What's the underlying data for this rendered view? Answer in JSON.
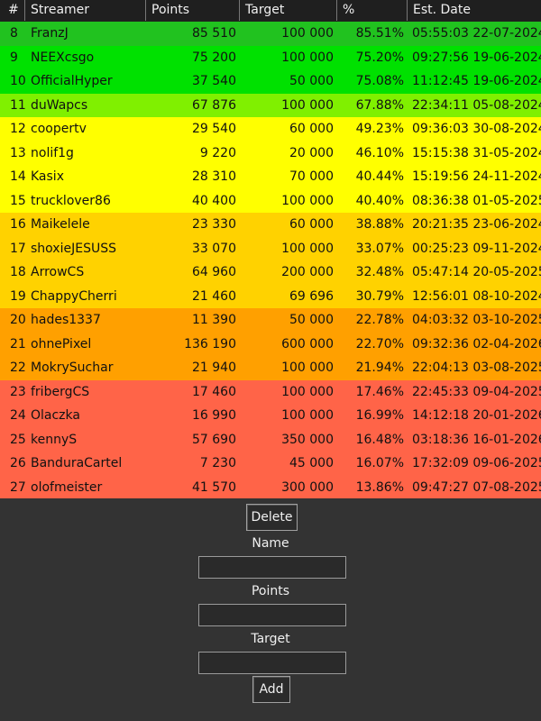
{
  "table": {
    "headers": [
      "#",
      "Streamer",
      "Points",
      "Target",
      "%",
      "Est. Date"
    ],
    "rows": [
      {
        "n": "8",
        "name": "FranzJ",
        "points": "85 510",
        "target": "100 000",
        "pct": "85.51%",
        "date": "05:55:03 22-07-2024",
        "color": "#21c21f"
      },
      {
        "n": "9",
        "name": "NEEXcsgo",
        "points": "75 200",
        "target": "100 000",
        "pct": "75.20%",
        "date": "09:27:56 19-06-2024",
        "color": "#00e100"
      },
      {
        "n": "10",
        "name": "OfficialHyper",
        "points": "37 540",
        "target": "50 000",
        "pct": "75.08%",
        "date": "11:12:45 19-06-2024",
        "color": "#00e100"
      },
      {
        "n": "11",
        "name": "duWapcs",
        "points": "67 876",
        "target": "100 000",
        "pct": "67.88%",
        "date": "22:34:11 05-08-2024",
        "color": "#80f000"
      },
      {
        "n": "12",
        "name": "coopertv",
        "points": "29 540",
        "target": "60 000",
        "pct": "49.23%",
        "date": "09:36:03 30-08-2024",
        "color": "#ffff00"
      },
      {
        "n": "13",
        "name": "nolif1g",
        "points": "9 220",
        "target": "20 000",
        "pct": "46.10%",
        "date": "15:15:38 31-05-2024",
        "color": "#ffff00"
      },
      {
        "n": "14",
        "name": "Kasix",
        "points": "28 310",
        "target": "70 000",
        "pct": "40.44%",
        "date": "15:19:56 24-11-2024",
        "color": "#ffff00"
      },
      {
        "n": "15",
        "name": "trucklover86",
        "points": "40 400",
        "target": "100 000",
        "pct": "40.40%",
        "date": "08:36:38 01-05-2025",
        "color": "#ffff00"
      },
      {
        "n": "16",
        "name": "Maikelele",
        "points": "23 330",
        "target": "60 000",
        "pct": "38.88%",
        "date": "20:21:35 23-06-2024",
        "color": "#ffd200"
      },
      {
        "n": "17",
        "name": "shoxieJESUSS",
        "points": "33 070",
        "target": "100 000",
        "pct": "33.07%",
        "date": "00:25:23 09-11-2024",
        "color": "#ffd200"
      },
      {
        "n": "18",
        "name": "ArrowCS",
        "points": "64 960",
        "target": "200 000",
        "pct": "32.48%",
        "date": "05:47:14 20-05-2025",
        "color": "#ffd200"
      },
      {
        "n": "19",
        "name": "ChappyCherri",
        "points": "21 460",
        "target": "69 696",
        "pct": "30.79%",
        "date": "12:56:01 08-10-2024",
        "color": "#ffd200"
      },
      {
        "n": "20",
        "name": "hades1337",
        "points": "11 390",
        "target": "50 000",
        "pct": "22.78%",
        "date": "04:03:32 03-10-2025",
        "color": "#ffa000"
      },
      {
        "n": "21",
        "name": "ohnePixel",
        "points": "136 190",
        "target": "600 000",
        "pct": "22.70%",
        "date": "09:32:36 02-04-2026",
        "color": "#ffa000"
      },
      {
        "n": "22",
        "name": "MokrySuchar",
        "points": "21 940",
        "target": "100 000",
        "pct": "21.94%",
        "date": "22:04:13 03-08-2025",
        "color": "#ffa000"
      },
      {
        "n": "23",
        "name": "fribergCS",
        "points": "17 460",
        "target": "100 000",
        "pct": "17.46%",
        "date": "22:45:33 09-04-2025",
        "color": "#ff6448"
      },
      {
        "n": "24",
        "name": "Olaczka",
        "points": "16 990",
        "target": "100 000",
        "pct": "16.99%",
        "date": "14:12:18 20-01-2026",
        "color": "#ff6448"
      },
      {
        "n": "25",
        "name": "kennyS",
        "points": "57 690",
        "target": "350 000",
        "pct": "16.48%",
        "date": "03:18:36 16-01-2026",
        "color": "#ff6448"
      },
      {
        "n": "26",
        "name": "BanduraCartel",
        "points": "7 230",
        "target": "45 000",
        "pct": "16.07%",
        "date": "17:32:09 09-06-2025",
        "color": "#ff6448"
      },
      {
        "n": "27",
        "name": "olofmeister",
        "points": "41 570",
        "target": "300 000",
        "pct": "13.86%",
        "date": "09:47:27 07-08-2025",
        "color": "#ff6448"
      }
    ]
  },
  "form": {
    "delete_label": "Delete",
    "name_label": "Name",
    "name_value": "",
    "points_label": "Points",
    "points_value": "",
    "target_label": "Target",
    "target_value": "",
    "add_label": "Add"
  }
}
